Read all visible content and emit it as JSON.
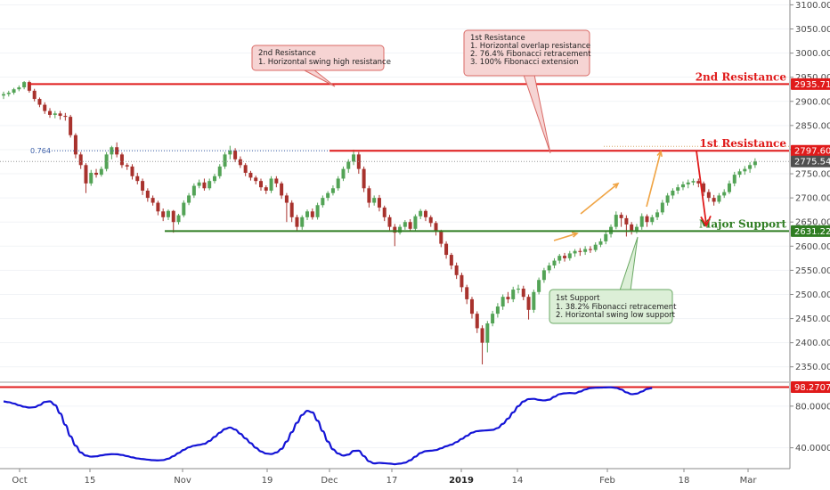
{
  "chart_data": {
    "type": "candlestick",
    "price_axis": {
      "ylim": [
        2320,
        3110
      ],
      "ticks": [
        3100,
        3050,
        3000,
        2950,
        2900,
        2850,
        2800,
        2750,
        2700,
        2650,
        2600,
        2550,
        2500,
        2450,
        2400,
        2350
      ],
      "tick_labels": [
        "3100.00",
        "3050.00",
        "3000.00",
        "2950.00",
        "2900.00",
        "2850.00",
        "2800.00",
        "2750.00",
        "2700.00",
        "2650.00",
        "2600.00",
        "2550.00",
        "2500.00",
        "2450.00",
        "2400.00",
        "2350.00"
      ]
    },
    "indicator_axis": {
      "ylim": [
        20,
        103
      ],
      "ticks": [
        80,
        40
      ],
      "tick_labels": [
        "80.0000",
        "40.0000"
      ]
    },
    "x_axis": {
      "tick_labels": [
        "Oct",
        "15",
        "Nov",
        "19",
        "Dec",
        "17",
        "2019",
        "14",
        "Feb",
        "18",
        "Mar"
      ],
      "bold_labels": [
        "2019"
      ]
    },
    "levels": [
      {
        "name": "2nd Resistance",
        "value": 2935.71,
        "label": "2935.71",
        "color": "#e01b1b"
      },
      {
        "name": "1st Resistance",
        "value": 2797.6,
        "label": "2797.60",
        "color": "#e01b1b"
      },
      {
        "name": "Major Support",
        "value": 2631.22,
        "label": "2631.22",
        "color": "#2f7d22"
      }
    ],
    "last_price": {
      "value": 2775.54,
      "label": "2775.54",
      "color": "#4f4f4f"
    },
    "indicator_level": {
      "value": 98.2707,
      "label": "98.2707",
      "color": "#e01b1b"
    },
    "fib_label": "0.764",
    "fib_value": 2797.6,
    "annotations": {
      "second_resistance": {
        "title": "2nd Resistance",
        "lines": [
          "1. Horizontal swing high resistance"
        ]
      },
      "first_resistance": {
        "title": "1st Resistance",
        "lines": [
          "1. Horizontal overlap resistance",
          "2. 76.4% Fibonacci retracement",
          "3. 100% Fibonacci extension"
        ]
      },
      "first_support": {
        "title": "1st Support",
        "lines": [
          "1. 38.2% Fibonacci retracement",
          "2. Horizontal swing low support"
        ]
      }
    },
    "colors": {
      "up": "#53a356",
      "down": "#a8322d",
      "indicator_line": "#1414d6",
      "arrow": "#f0a444"
    },
    "candles": [
      [
        2912,
        2915,
        2905,
        2920
      ],
      [
        2915,
        2918,
        2910,
        2922
      ],
      [
        2918,
        2925,
        2914,
        2928
      ],
      [
        2925,
        2929,
        2921,
        2933
      ],
      [
        2929,
        2940,
        2925,
        2942
      ],
      [
        2940,
        2922,
        2918,
        2943
      ],
      [
        2922,
        2905,
        2900,
        2926
      ],
      [
        2905,
        2893,
        2888,
        2908
      ],
      [
        2893,
        2880,
        2874,
        2898
      ],
      [
        2880,
        2872,
        2866,
        2886
      ],
      [
        2872,
        2875,
        2865,
        2880
      ],
      [
        2875,
        2870,
        2862,
        2880
      ],
      [
        2870,
        2868,
        2860,
        2876
      ],
      [
        2868,
        2830,
        2825,
        2872
      ],
      [
        2830,
        2790,
        2782,
        2834
      ],
      [
        2790,
        2768,
        2760,
        2795
      ],
      [
        2768,
        2730,
        2710,
        2772
      ],
      [
        2730,
        2752,
        2725,
        2758
      ],
      [
        2752,
        2748,
        2742,
        2760
      ],
      [
        2748,
        2760,
        2744,
        2765
      ],
      [
        2760,
        2790,
        2755,
        2795
      ],
      [
        2790,
        2805,
        2780,
        2808
      ],
      [
        2805,
        2790,
        2784,
        2815
      ],
      [
        2790,
        2768,
        2762,
        2794
      ],
      [
        2768,
        2765,
        2758,
        2772
      ],
      [
        2765,
        2745,
        2738,
        2770
      ],
      [
        2745,
        2735,
        2728,
        2752
      ],
      [
        2735,
        2715,
        2706,
        2740
      ],
      [
        2715,
        2700,
        2692,
        2720
      ],
      [
        2700,
        2690,
        2684,
        2705
      ],
      [
        2690,
        2672,
        2664,
        2694
      ],
      [
        2672,
        2660,
        2652,
        2678
      ],
      [
        2660,
        2673,
        2654,
        2676
      ],
      [
        2673,
        2650,
        2628,
        2675
      ],
      [
        2650,
        2664,
        2645,
        2667
      ],
      [
        2664,
        2690,
        2660,
        2695
      ],
      [
        2690,
        2705,
        2685,
        2710
      ],
      [
        2705,
        2725,
        2700,
        2730
      ],
      [
        2725,
        2732,
        2720,
        2738
      ],
      [
        2732,
        2720,
        2715,
        2740
      ],
      [
        2720,
        2735,
        2716,
        2740
      ],
      [
        2735,
        2745,
        2730,
        2750
      ],
      [
        2745,
        2765,
        2740,
        2770
      ],
      [
        2765,
        2790,
        2760,
        2795
      ],
      [
        2790,
        2798,
        2780,
        2808
      ],
      [
        2798,
        2780,
        2774,
        2803
      ],
      [
        2780,
        2768,
        2762,
        2786
      ],
      [
        2768,
        2752,
        2745,
        2772
      ],
      [
        2752,
        2742,
        2736,
        2756
      ],
      [
        2742,
        2735,
        2728,
        2746
      ],
      [
        2735,
        2722,
        2715,
        2740
      ],
      [
        2722,
        2715,
        2708,
        2726
      ],
      [
        2715,
        2740,
        2710,
        2745
      ],
      [
        2740,
        2730,
        2722,
        2745
      ],
      [
        2730,
        2705,
        2698,
        2734
      ],
      [
        2705,
        2690,
        2650,
        2710
      ],
      [
        2690,
        2660,
        2650,
        2695
      ],
      [
        2660,
        2640,
        2632,
        2665
      ],
      [
        2640,
        2660,
        2634,
        2664
      ],
      [
        2660,
        2672,
        2654,
        2676
      ],
      [
        2672,
        2660,
        2655,
        2678
      ],
      [
        2660,
        2685,
        2655,
        2690
      ],
      [
        2685,
        2700,
        2680,
        2705
      ],
      [
        2700,
        2710,
        2694,
        2714
      ],
      [
        2710,
        2720,
        2705,
        2726
      ],
      [
        2720,
        2740,
        2715,
        2745
      ],
      [
        2740,
        2760,
        2735,
        2765
      ],
      [
        2760,
        2775,
        2752,
        2780
      ],
      [
        2775,
        2790,
        2768,
        2800
      ],
      [
        2790,
        2760,
        2750,
        2795
      ],
      [
        2760,
        2720,
        2712,
        2765
      ],
      [
        2720,
        2690,
        2680,
        2725
      ],
      [
        2690,
        2700,
        2684,
        2705
      ],
      [
        2700,
        2680,
        2672,
        2706
      ],
      [
        2680,
        2660,
        2652,
        2684
      ],
      [
        2660,
        2640,
        2633,
        2665
      ],
      [
        2640,
        2628,
        2600,
        2646
      ],
      [
        2628,
        2640,
        2624,
        2645
      ],
      [
        2640,
        2650,
        2634,
        2654
      ],
      [
        2650,
        2636,
        2630,
        2656
      ],
      [
        2636,
        2662,
        2632,
        2666
      ],
      [
        2662,
        2673,
        2656,
        2677
      ],
      [
        2673,
        2660,
        2652,
        2676
      ],
      [
        2660,
        2648,
        2640,
        2664
      ],
      [
        2648,
        2630,
        2622,
        2652
      ],
      [
        2630,
        2605,
        2598,
        2634
      ],
      [
        2605,
        2582,
        2574,
        2610
      ],
      [
        2582,
        2560,
        2552,
        2586
      ],
      [
        2560,
        2540,
        2532,
        2566
      ],
      [
        2540,
        2515,
        2505,
        2545
      ],
      [
        2515,
        2490,
        2480,
        2520
      ],
      [
        2490,
        2460,
        2450,
        2495
      ],
      [
        2460,
        2430,
        2420,
        2465
      ],
      [
        2430,
        2400,
        2355,
        2436
      ],
      [
        2400,
        2440,
        2380,
        2445
      ],
      [
        2440,
        2460,
        2434,
        2466
      ],
      [
        2460,
        2475,
        2452,
        2482
      ],
      [
        2475,
        2495,
        2468,
        2500
      ],
      [
        2495,
        2490,
        2482,
        2505
      ],
      [
        2490,
        2510,
        2484,
        2516
      ],
      [
        2510,
        2512,
        2502,
        2520
      ],
      [
        2512,
        2495,
        2488,
        2518
      ],
      [
        2495,
        2468,
        2448,
        2500
      ],
      [
        2468,
        2505,
        2462,
        2510
      ],
      [
        2505,
        2530,
        2500,
        2535
      ],
      [
        2530,
        2550,
        2524,
        2555
      ],
      [
        2550,
        2560,
        2544,
        2566
      ],
      [
        2560,
        2570,
        2554,
        2575
      ],
      [
        2570,
        2580,
        2564,
        2584
      ],
      [
        2580,
        2575,
        2568,
        2586
      ],
      [
        2575,
        2585,
        2570,
        2590
      ],
      [
        2585,
        2590,
        2578,
        2594
      ],
      [
        2590,
        2588,
        2580,
        2596
      ],
      [
        2588,
        2594,
        2582,
        2600
      ],
      [
        2594,
        2592,
        2586,
        2600
      ],
      [
        2592,
        2603,
        2588,
        2608
      ],
      [
        2603,
        2610,
        2598,
        2616
      ],
      [
        2610,
        2625,
        2604,
        2630
      ],
      [
        2625,
        2640,
        2618,
        2645
      ],
      [
        2640,
        2665,
        2635,
        2672
      ],
      [
        2665,
        2658,
        2640,
        2670
      ],
      [
        2658,
        2645,
        2620,
        2664
      ],
      [
        2645,
        2632,
        2624,
        2650
      ],
      [
        2632,
        2640,
        2626,
        2646
      ],
      [
        2640,
        2662,
        2634,
        2668
      ],
      [
        2662,
        2650,
        2640,
        2666
      ],
      [
        2650,
        2660,
        2644,
        2665
      ],
      [
        2660,
        2670,
        2654,
        2676
      ],
      [
        2670,
        2690,
        2665,
        2696
      ],
      [
        2690,
        2705,
        2684,
        2710
      ],
      [
        2705,
        2715,
        2698,
        2720
      ],
      [
        2715,
        2722,
        2708,
        2728
      ],
      [
        2722,
        2728,
        2716,
        2734
      ],
      [
        2728,
        2732,
        2720,
        2738
      ],
      [
        2732,
        2735,
        2726,
        2740
      ],
      [
        2735,
        2730,
        2722,
        2740
      ],
      [
        2730,
        2712,
        2704,
        2734
      ],
      [
        2712,
        2700,
        2692,
        2718
      ],
      [
        2700,
        2692,
        2684,
        2706
      ],
      [
        2692,
        2705,
        2688,
        2710
      ],
      [
        2705,
        2712,
        2700,
        2718
      ],
      [
        2712,
        2730,
        2708,
        2736
      ],
      [
        2730,
        2748,
        2724,
        2754
      ],
      [
        2748,
        2755,
        2742,
        2760
      ],
      [
        2755,
        2760,
        2748,
        2766
      ],
      [
        2760,
        2768,
        2752,
        2774
      ],
      [
        2768,
        2775.54,
        2762,
        2782
      ]
    ],
    "indicator": [
      84.5,
      83.8,
      82.5,
      80.8,
      79.4,
      78.6,
      79.0,
      81.0,
      84.0,
      84.6,
      81.0,
      73.0,
      62.0,
      51.0,
      42.0,
      35.5,
      32.5,
      31.5,
      31.8,
      32.7,
      33.5,
      33.9,
      33.8,
      33.1,
      32.0,
      30.8,
      29.8,
      29.2,
      28.6,
      28.1,
      27.9,
      28.2,
      29.5,
      32.0,
      35.0,
      38.0,
      40.5,
      42.0,
      42.8,
      43.8,
      46.5,
      50.5,
      54.5,
      58.0,
      59.5,
      57.5,
      53.5,
      49.0,
      44.5,
      40.0,
      36.5,
      34.5,
      34.0,
      35.5,
      39.0,
      46.0,
      55.0,
      64.0,
      71.5,
      75.5,
      74.0,
      66.0,
      56.0,
      46.0,
      38.5,
      34.5,
      32.5,
      33.5,
      37.0,
      37.2,
      32.0,
      27.0,
      25.0,
      25.5,
      25.2,
      24.8,
      24.2,
      24.8,
      25.7,
      28.0,
      31.5,
      35.0,
      36.8,
      37.2,
      37.8,
      39.5,
      41.5,
      43.0,
      45.5,
      48.5,
      51.5,
      54.5,
      56.0,
      56.5,
      56.8,
      57.2,
      59.0,
      63.0,
      68.0,
      74.0,
      80.0,
      84.5,
      86.8,
      87.0,
      86.0,
      85.5,
      86.2,
      89.0,
      91.5,
      92.3,
      92.6,
      92.3,
      94.0,
      96.0,
      97.3,
      97.7,
      97.8,
      98.0,
      98.1,
      97.5,
      96.0,
      93.2,
      91.5,
      92.0,
      94.0,
      96.5,
      97.3
    ]
  }
}
